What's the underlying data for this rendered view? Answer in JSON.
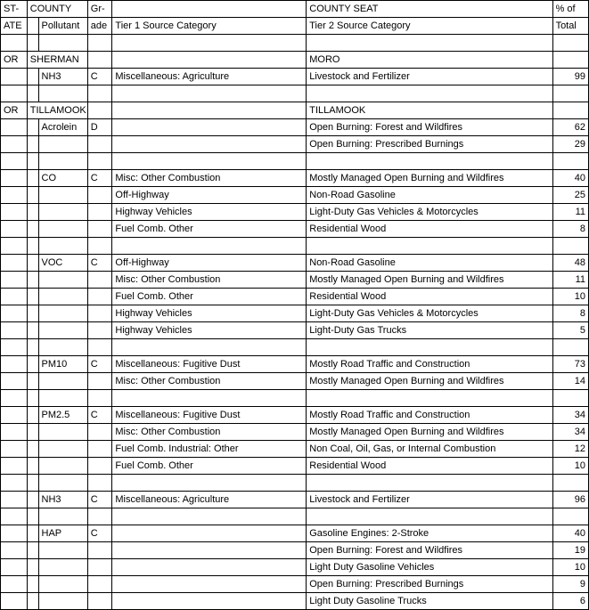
{
  "columns": {
    "state_hdr1": "ST-",
    "state_hdr2": "ATE",
    "county_hdr": "COUNTY",
    "pollutant_hdr": "Pollutant",
    "grade_hdr1": "Gr-",
    "grade_hdr2": "ade",
    "tier1_hdr": "Tier 1 Source Category",
    "countyseat_hdr": "COUNTY SEAT",
    "tier2_hdr": "Tier 2 Source Category",
    "pctof_hdr": "% of",
    "total_hdr": "Total"
  },
  "rows": [
    {
      "type": "header1"
    },
    {
      "type": "header2"
    },
    {
      "type": "blank"
    },
    {
      "type": "county",
      "state": "OR",
      "county": "SHERMAN",
      "seat": "MORO"
    },
    {
      "type": "data",
      "pollutant": "NH3",
      "grade": "C",
      "tier1": "Miscellaneous: Agriculture",
      "tier2": "Livestock and Fertilizer",
      "total": "99"
    },
    {
      "type": "blank"
    },
    {
      "type": "county",
      "state": "OR",
      "county": "TILLAMOOK",
      "seat": "TILLAMOOK"
    },
    {
      "type": "data",
      "pollutant": "Acrolein",
      "grade": "D",
      "tier1": "",
      "tier2": "Open Burning:  Forest and Wildfires",
      "total": "62"
    },
    {
      "type": "data",
      "pollutant": "",
      "grade": "",
      "tier1": "",
      "tier2": "Open Burning:  Prescribed Burnings",
      "total": "29"
    },
    {
      "type": "blank"
    },
    {
      "type": "data",
      "pollutant": "CO",
      "grade": "C",
      "tier1": "Misc: Other Combustion",
      "tier2": "Mostly Managed Open Burning and Wildfires",
      "total": "40"
    },
    {
      "type": "data",
      "pollutant": "",
      "grade": "",
      "tier1": "Off-Highway",
      "tier2": "Non-Road Gasoline",
      "total": "25"
    },
    {
      "type": "data",
      "pollutant": "",
      "grade": "",
      "tier1": "Highway Vehicles",
      "tier2": "Light-Duty Gas Vehicles & Motorcycles",
      "total": "11"
    },
    {
      "type": "data",
      "pollutant": "",
      "grade": "",
      "tier1": "Fuel Comb. Other",
      "tier2": "Residential Wood",
      "total": "8"
    },
    {
      "type": "blank"
    },
    {
      "type": "data",
      "pollutant": "VOC",
      "grade": "C",
      "tier1": "Off-Highway",
      "tier2": "Non-Road Gasoline",
      "total": "48"
    },
    {
      "type": "data",
      "pollutant": "",
      "grade": "",
      "tier1": "Misc: Other Combustion",
      "tier2": "Mostly Managed Open Burning and Wildfires",
      "total": "11"
    },
    {
      "type": "data",
      "pollutant": "",
      "grade": "",
      "tier1": "Fuel Comb. Other",
      "tier2": "Residential Wood",
      "total": "10"
    },
    {
      "type": "data",
      "pollutant": "",
      "grade": "",
      "tier1": "Highway Vehicles",
      "tier2": "Light-Duty Gas Vehicles & Motorcycles",
      "total": "8"
    },
    {
      "type": "data",
      "pollutant": "",
      "grade": "",
      "tier1": "Highway Vehicles",
      "tier2": "Light-Duty Gas Trucks",
      "total": "5"
    },
    {
      "type": "blank"
    },
    {
      "type": "data",
      "pollutant": "PM10",
      "grade": "C",
      "tier1": "Miscellaneous: Fugitive Dust",
      "tier2": "Mostly Road Traffic and Construction",
      "total": "73"
    },
    {
      "type": "data",
      "pollutant": "",
      "grade": "",
      "tier1": "Misc: Other Combustion",
      "tier2": "Mostly Managed Open Burning and Wildfires",
      "total": "14"
    },
    {
      "type": "blank"
    },
    {
      "type": "data",
      "pollutant": "PM2.5",
      "grade": "C",
      "tier1": "Miscellaneous: Fugitive Dust",
      "tier2": "Mostly Road Traffic and Construction",
      "total": "34"
    },
    {
      "type": "data",
      "pollutant": "",
      "grade": "",
      "tier1": "Misc: Other Combustion",
      "tier2": "Mostly Managed Open Burning and Wildfires",
      "total": "34"
    },
    {
      "type": "data",
      "pollutant": "",
      "grade": "",
      "tier1": "Fuel Comb. Industrial: Other",
      "tier2": "Non Coal, Oil, Gas, or Internal Combustion",
      "total": "12"
    },
    {
      "type": "data",
      "pollutant": "",
      "grade": "",
      "tier1": "Fuel Comb. Other",
      "tier2": "Residential Wood",
      "total": "10"
    },
    {
      "type": "blank"
    },
    {
      "type": "data",
      "pollutant": "NH3",
      "grade": "C",
      "tier1": "Miscellaneous: Agriculture",
      "tier2": "Livestock and Fertilizer",
      "total": "96"
    },
    {
      "type": "blank"
    },
    {
      "type": "data",
      "pollutant": "HAP",
      "grade": "C",
      "tier1": "",
      "tier2": "Gasoline Engines: 2-Stroke",
      "total": "40"
    },
    {
      "type": "data",
      "pollutant": "",
      "grade": "",
      "tier1": "",
      "tier2": "Open Burning:  Forest and Wildfires",
      "total": "19"
    },
    {
      "type": "data",
      "pollutant": "",
      "grade": "",
      "tier1": "",
      "tier2": "Light Duty Gasoline Vehicles",
      "total": "10"
    },
    {
      "type": "data",
      "pollutant": "",
      "grade": "",
      "tier1": "",
      "tier2": "Open Burning:  Prescribed Burnings",
      "total": "9"
    },
    {
      "type": "data",
      "pollutant": "",
      "grade": "",
      "tier1": "",
      "tier2": "Light Duty Gasoline Trucks",
      "total": "6"
    }
  ]
}
